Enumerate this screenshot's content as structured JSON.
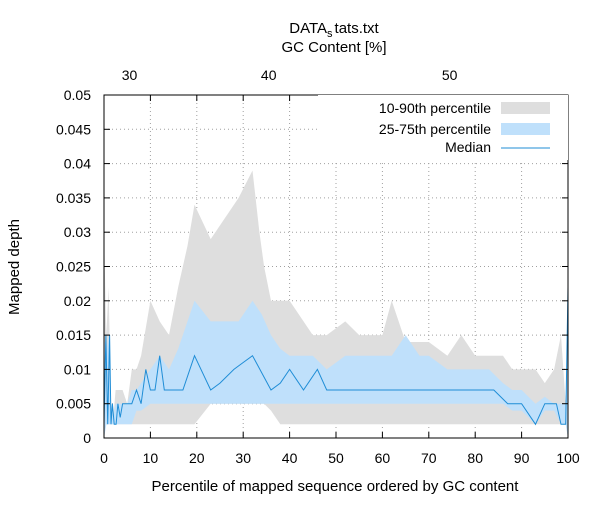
{
  "chart_data": {
    "type": "area",
    "title_main": "DATA",
    "title_sub": "s",
    "title_rest": "tats.txt",
    "top_axis_label": "GC Content [%]",
    "top_ticks": [
      {
        "label": "30",
        "x": 5.5
      },
      {
        "label": "40",
        "x": 35.5
      },
      {
        "label": "50",
        "x": 74.5
      }
    ],
    "xlabel": "Percentile of mapped sequence ordered by GC content",
    "ylabel": "Mapped depth",
    "xlim": [
      0,
      100
    ],
    "ylim": [
      0,
      0.05
    ],
    "x_ticks": [
      "0",
      "10",
      "20",
      "30",
      "40",
      "50",
      "60",
      "70",
      "80",
      "90",
      "100"
    ],
    "y_ticks": [
      "0",
      "0.005",
      "0.01",
      "0.015",
      "0.02",
      "0.025",
      "0.03",
      "0.035",
      "0.04",
      "0.045",
      "0.05"
    ],
    "grid": true,
    "legend_position": "top-right",
    "colors": {
      "band_10_90": "#dedede",
      "band_25_75": "#bfe0fb",
      "median": "#1f8dd6"
    },
    "series": [
      {
        "name": "10-90th percentile",
        "x": [
          0,
          0.5,
          1,
          1.5,
          2,
          2.5,
          3,
          4,
          5,
          6,
          7,
          8,
          10,
          12,
          14,
          16,
          18,
          19.5,
          23,
          27,
          29,
          32,
          33.5,
          34.5,
          36,
          38,
          40,
          42,
          45,
          48,
          52,
          55,
          60,
          62,
          65,
          68,
          70,
          74,
          77,
          80,
          83,
          86,
          88,
          90,
          93,
          95,
          97,
          98.5,
          99.5,
          100
        ],
        "low": [
          0,
          0.002,
          0.002,
          0.002,
          0.002,
          0.002,
          0.002,
          0.002,
          0.002,
          0.002,
          0.002,
          0.002,
          0.002,
          0.002,
          0.002,
          0.002,
          0.002,
          0.002,
          0.005,
          0.005,
          0.005,
          0.005,
          0.005,
          0.005,
          0.004,
          0.002,
          0.002,
          0.002,
          0.002,
          0.002,
          0.002,
          0.002,
          0.002,
          0.002,
          0.002,
          0.002,
          0.002,
          0.002,
          0.002,
          0.002,
          0.002,
          0.002,
          0.002,
          0.002,
          0.002,
          0.002,
          0.002,
          0.002,
          0.002,
          0
        ],
        "high": [
          0.03,
          0.015,
          0.022,
          0.005,
          0.003,
          0.007,
          0.007,
          0.007,
          0.005,
          0.01,
          0.01,
          0.012,
          0.02,
          0.017,
          0.015,
          0.022,
          0.028,
          0.034,
          0.029,
          0.033,
          0.035,
          0.039,
          0.03,
          0.025,
          0.02,
          0.02,
          0.02,
          0.018,
          0.015,
          0.015,
          0.017,
          0.015,
          0.015,
          0.02,
          0.014,
          0.014,
          0.014,
          0.012,
          0.015,
          0.012,
          0.012,
          0.012,
          0.01,
          0.01,
          0.01,
          0.008,
          0.01,
          0.015,
          0.005,
          0.02
        ]
      },
      {
        "name": "25-75th percentile",
        "x": [
          0,
          0.5,
          1,
          1.5,
          2,
          2.5,
          3,
          4,
          5,
          6,
          7,
          8,
          10,
          12,
          14,
          16,
          18,
          19.5,
          23,
          27,
          29,
          32,
          34,
          36,
          38,
          40,
          42,
          45,
          48,
          52,
          55,
          60,
          62,
          65,
          68,
          70,
          74,
          77,
          80,
          83,
          86,
          88,
          90,
          93,
          95,
          97,
          98.5,
          99.5,
          100
        ],
        "low": [
          0,
          0.002,
          0.002,
          0.002,
          0.002,
          0.002,
          0.002,
          0.002,
          0.002,
          0.002,
          0.004,
          0.004,
          0.005,
          0.005,
          0.005,
          0.005,
          0.005,
          0.005,
          0.005,
          0.005,
          0.005,
          0.005,
          0.005,
          0.005,
          0.005,
          0.005,
          0.005,
          0.005,
          0.005,
          0.005,
          0.005,
          0.005,
          0.005,
          0.005,
          0.005,
          0.005,
          0.005,
          0.005,
          0.005,
          0.005,
          0.005,
          0.004,
          0.004,
          0.002,
          0.004,
          0.004,
          0.002,
          0.002,
          0
        ],
        "high": [
          0.015,
          0.012,
          0.015,
          0.005,
          0.003,
          0.005,
          0.005,
          0.005,
          0.005,
          0.007,
          0.007,
          0.008,
          0.01,
          0.012,
          0.01,
          0.013,
          0.017,
          0.02,
          0.017,
          0.017,
          0.017,
          0.02,
          0.018,
          0.015,
          0.013,
          0.012,
          0.012,
          0.012,
          0.01,
          0.012,
          0.012,
          0.012,
          0.012,
          0.015,
          0.012,
          0.012,
          0.01,
          0.01,
          0.01,
          0.01,
          0.008,
          0.007,
          0.007,
          0.005,
          0.006,
          0.005,
          0.005,
          0.005,
          0.015
        ]
      },
      {
        "name": "Median",
        "x": [
          0,
          0.4,
          0.8,
          1.2,
          1.5,
          1.8,
          2.2,
          2.6,
          3,
          3.5,
          4,
          5,
          6,
          7,
          8,
          9,
          10,
          11,
          12,
          13,
          14,
          16,
          17,
          19.5,
          23,
          25,
          28,
          30,
          32,
          36,
          38,
          40,
          43,
          46,
          48,
          50,
          55,
          60,
          65,
          70,
          74,
          78,
          82,
          84,
          87,
          89,
          90,
          93,
          95,
          97.5,
          98.5,
          99.5,
          100
        ],
        "y": [
          0.002,
          0.015,
          0.002,
          0.015,
          0.002,
          0.005,
          0.002,
          0.002,
          0.005,
          0.003,
          0.005,
          0.005,
          0.005,
          0.007,
          0.005,
          0.01,
          0.007,
          0.007,
          0.012,
          0.007,
          0.007,
          0.007,
          0.007,
          0.012,
          0.007,
          0.008,
          0.01,
          0.011,
          0.012,
          0.007,
          0.008,
          0.01,
          0.007,
          0.01,
          0.007,
          0.007,
          0.007,
          0.007,
          0.007,
          0.007,
          0.007,
          0.007,
          0.007,
          0.007,
          0.005,
          0.005,
          0.005,
          0.002,
          0.005,
          0.005,
          0.002,
          0.002,
          0.022
        ]
      }
    ]
  }
}
